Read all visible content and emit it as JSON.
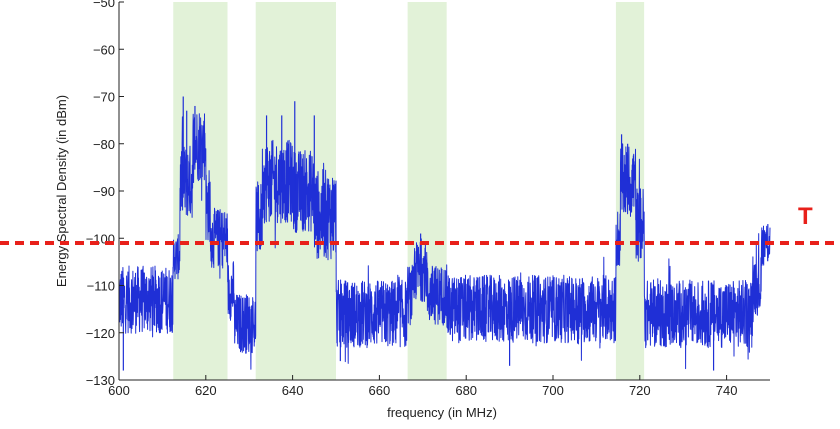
{
  "colors": {
    "band": "#e2f2d8",
    "signal": "#1f2fd6",
    "threshold": "#e8201a",
    "axis": "#222222"
  },
  "chart_data": {
    "type": "line",
    "xlabel": "frequency (in MHz)",
    "ylabel": "Energy Spectral Density (in dBm)",
    "xlim": [
      600,
      750
    ],
    "ylim": [
      -130,
      -50
    ],
    "x_ticks": [
      600,
      620,
      640,
      660,
      680,
      700,
      720,
      740
    ],
    "y_ticks": [
      -130,
      -120,
      -110,
      -100,
      -90,
      -80,
      -70,
      -60,
      -50
    ],
    "highlight_bands_mhz": [
      [
        612.5,
        625
      ],
      [
        631.5,
        650
      ],
      [
        666.5,
        675.5
      ],
      [
        714.5,
        721
      ]
    ],
    "threshold": {
      "label": "T",
      "value": -101,
      "style": "dotted"
    },
    "series": [
      {
        "segments": [
          {
            "from": 600,
            "to": 612.5,
            "level": -113,
            "noise": 4.5
          },
          {
            "from": 612.5,
            "to": 614,
            "level": -104,
            "noise": 3
          },
          {
            "from": 614,
            "to": 617,
            "level": -88,
            "noise": 5
          },
          {
            "from": 617,
            "to": 620,
            "level": -80,
            "noise": 5
          },
          {
            "from": 620,
            "to": 621,
            "level": -93,
            "noise": 5
          },
          {
            "from": 621,
            "to": 625,
            "level": -100,
            "noise": 4
          },
          {
            "from": 625,
            "to": 626.5,
            "level": -111,
            "noise": 4
          },
          {
            "from": 626.5,
            "to": 631.5,
            "level": -118,
            "noise": 4
          },
          {
            "from": 631.5,
            "to": 633,
            "level": -96,
            "noise": 5
          },
          {
            "from": 633,
            "to": 640,
            "level": -88,
            "noise": 5.5
          },
          {
            "from": 640,
            "to": 645,
            "level": -90,
            "noise": 5.5
          },
          {
            "from": 645,
            "to": 650,
            "level": -95,
            "noise": 6
          },
          {
            "from": 650,
            "to": 666.5,
            "level": -116,
            "noise": 4.5
          },
          {
            "from": 666.5,
            "to": 668,
            "level": -112,
            "noise": 4
          },
          {
            "from": 668,
            "to": 671,
            "level": -107,
            "noise": 4
          },
          {
            "from": 671,
            "to": 675.5,
            "level": -112,
            "noise": 4
          },
          {
            "from": 675.5,
            "to": 714.5,
            "level": -115,
            "noise": 4.5
          },
          {
            "from": 714.5,
            "to": 715.5,
            "level": -100,
            "noise": 4
          },
          {
            "from": 715.5,
            "to": 719,
            "level": -88,
            "noise": 5
          },
          {
            "from": 719,
            "to": 721,
            "level": -97,
            "noise": 5
          },
          {
            "from": 721,
            "to": 746,
            "level": -116,
            "noise": 4.5
          },
          {
            "from": 746,
            "to": 748,
            "level": -110,
            "noise": 4
          },
          {
            "from": 748,
            "to": 750,
            "level": -101,
            "noise": 3
          }
        ],
        "spikes": [
          {
            "x": 614.8,
            "y": -70
          },
          {
            "x": 615.6,
            "y": -73
          },
          {
            "x": 617.5,
            "y": -72
          },
          {
            "x": 634.0,
            "y": -74
          },
          {
            "x": 637.5,
            "y": -74
          },
          {
            "x": 640.5,
            "y": -71
          },
          {
            "x": 645.0,
            "y": -74
          },
          {
            "x": 669.5,
            "y": -99
          },
          {
            "x": 715.8,
            "y": -78
          },
          {
            "x": 717.2,
            "y": -80
          },
          {
            "x": 601.0,
            "y": -128
          },
          {
            "x": 651.0,
            "y": -126
          },
          {
            "x": 690.0,
            "y": -127
          },
          {
            "x": 737.0,
            "y": -128
          },
          {
            "x": 749.5,
            "y": -97
          }
        ]
      }
    ]
  }
}
